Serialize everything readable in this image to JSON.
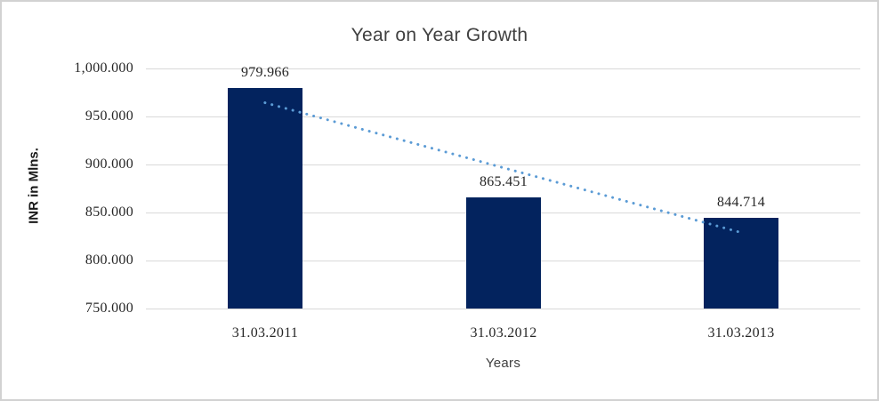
{
  "chart_data": {
    "type": "bar",
    "title": "Year on Year Growth",
    "xlabel": "Years",
    "ylabel": "INR in Mlns.",
    "categories": [
      "31.03.2011",
      "31.03.2012",
      "31.03.2013"
    ],
    "values": [
      979.966,
      865.451,
      844.714
    ],
    "data_labels": [
      "979.966",
      "865.451",
      "844.714"
    ],
    "ylim": [
      750,
      1000
    ],
    "y_ticks": [
      1000,
      950,
      900,
      850,
      800,
      750
    ],
    "y_tick_labels": [
      "1,000.000",
      "950.000",
      "900.000",
      "850.000",
      "800.000",
      "750.000"
    ],
    "grid": true,
    "legend": false,
    "trendline": {
      "type": "linear",
      "style": "dotted",
      "start_value": 964.3,
      "end_value": 829.1
    }
  },
  "colors": {
    "bar": "#03235e",
    "trendline": "#5b9bd5",
    "gridline": "#d9d9d9",
    "title_text": "#404040",
    "label_text": "#262626",
    "border": "#d2d2d2",
    "background": "#ffffff"
  }
}
